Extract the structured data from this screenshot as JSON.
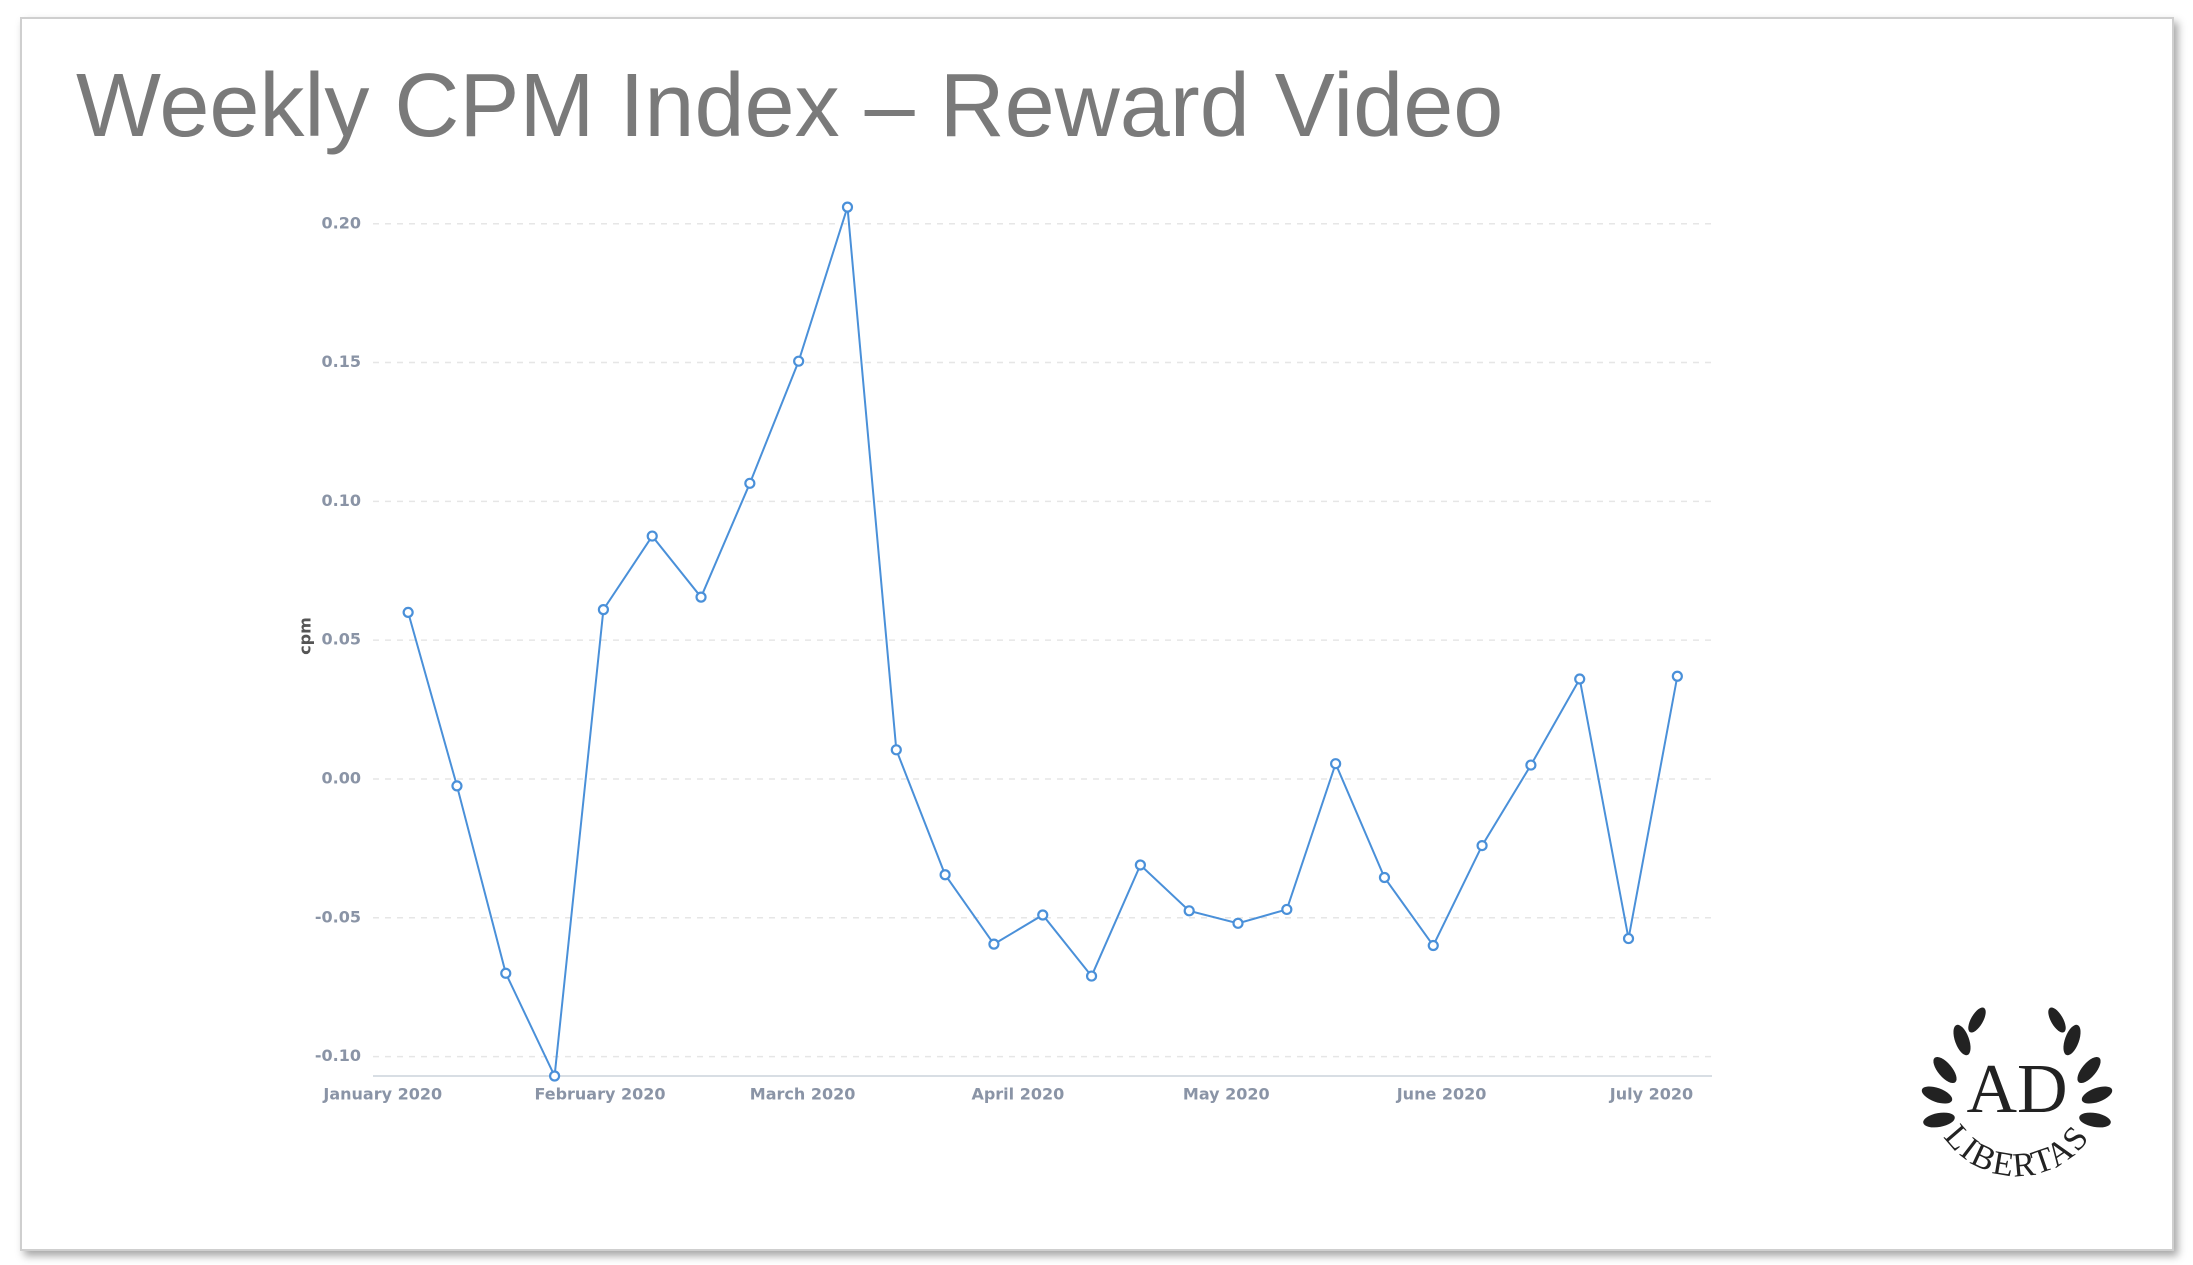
{
  "chart_data": {
    "type": "line",
    "title": "Weekly CPM Index – Reward Video",
    "y_label": "cpm",
    "categories": [
      null,
      null,
      null,
      null,
      null,
      null,
      null,
      null,
      null,
      null,
      null,
      null,
      null,
      null,
      null,
      null,
      null,
      null,
      null,
      null,
      null,
      null,
      null,
      null,
      null,
      null,
      null
    ],
    "series": [
      {
        "color": "#4a90d9",
        "values": [
          0.06,
          -0.0025,
          -0.07,
          -0.107,
          0.061,
          0.0875,
          0.0655,
          0.1065,
          0.1505,
          0.206,
          0.0105,
          -0.0345,
          -0.0595,
          -0.049,
          -0.071,
          -0.031,
          -0.0475,
          -0.052,
          -0.047,
          0.0055,
          -0.0355,
          -0.06,
          -0.024,
          0.005,
          0.036,
          -0.0575,
          0.037
        ]
      }
    ],
    "xlim": [
      -0.72,
      26.71
    ],
    "xticks": [
      {
        "value": -0.52,
        "label": "January 2020"
      },
      {
        "value": 3.93,
        "label": "February 2020"
      },
      {
        "value": 8.08,
        "label": "March 2020"
      },
      {
        "value": 12.49,
        "label": "April 2020"
      },
      {
        "value": 16.76,
        "label": "May 2020"
      },
      {
        "value": 21.17,
        "label": "June 2020"
      },
      {
        "value": 25.47,
        "label": "July 2020"
      }
    ],
    "ylim": [
      -0.107,
      0.21
    ],
    "yticks": [
      {
        "value": 0.2,
        "label": "0.20"
      },
      0.15,
      {
        "value": 0.1,
        "label": "0.10"
      },
      0.05,
      {
        "value": 0,
        "label": "0.00"
      },
      -0.05,
      {
        "value": -0.1,
        "label": "-0.10"
      }
    ],
    "grid": true
  },
  "logo": {
    "mark": "AD",
    "text": "LIBERTAS"
  }
}
